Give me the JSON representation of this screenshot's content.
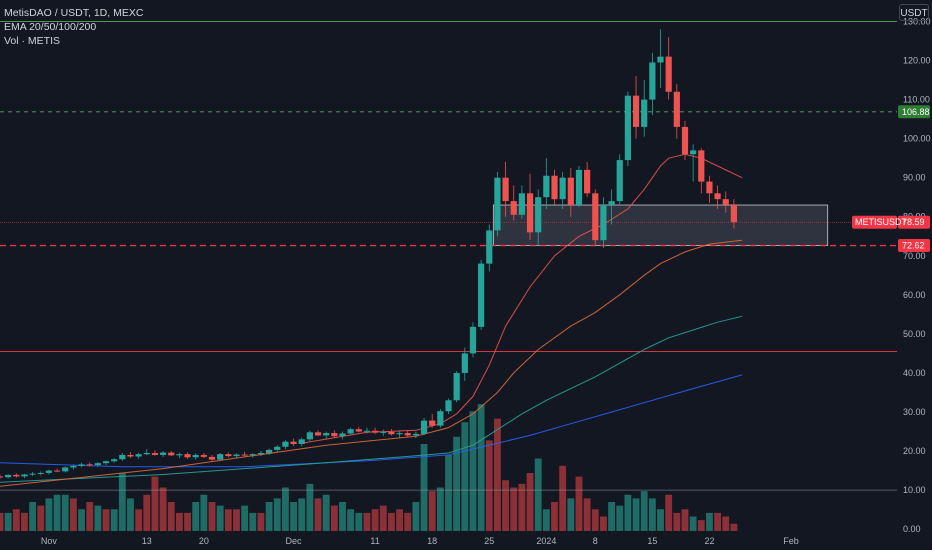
{
  "legend": {
    "title": "MetisDAO / USDT, 1D, MEXC",
    "ema": "EMA 20/50/100/200",
    "vol": "Vol · METIS"
  },
  "currency_label": "USDT",
  "colors": {
    "bg": "#131722",
    "up": "#26a69a",
    "down": "#ef5350",
    "vol_up": "#1f6b66",
    "vol_down": "#8a3036",
    "ema20": "#ef5350",
    "ema50": "#e06a3a",
    "ema100": "#26a69a",
    "ema200": "#2962ff",
    "green_level": "#4caf50",
    "red_level": "#f23645"
  },
  "chart_data": {
    "type": "candlestick",
    "symbol": "METISUSDT",
    "y_ticks": [
      0,
      10,
      20,
      30,
      40,
      50,
      60,
      70,
      80,
      90,
      100,
      110,
      120,
      130
    ],
    "y_tick_labels": [
      "0.00",
      "10.00",
      "20.00",
      "30.00",
      "40.00",
      "50.00",
      "60.00",
      "70.00",
      "80.00",
      "90.00",
      "100.00",
      "110.00",
      "120.00",
      "130.00"
    ],
    "ylim": [
      -1.5,
      135.5
    ],
    "x_ticks": [
      {
        "label": "Nov",
        "index": 6
      },
      {
        "label": "13",
        "index": 18
      },
      {
        "label": "20",
        "index": 25
      },
      {
        "label": "Dec",
        "index": 36
      },
      {
        "label": "11",
        "index": 46
      },
      {
        "label": "18",
        "index": 53
      },
      {
        "label": "25",
        "index": 60
      },
      {
        "label": "2024",
        "index": 67
      },
      {
        "label": "8",
        "index": 73
      },
      {
        "label": "15",
        "index": 80
      },
      {
        "label": "22",
        "index": 87
      },
      {
        "label": "Feb",
        "index": 97
      }
    ],
    "x_range": [
      0,
      110
    ],
    "candles": [
      [
        13.5,
        14.0,
        12.9,
        13.3
      ],
      [
        13.3,
        14.1,
        13.0,
        13.9
      ],
      [
        13.9,
        14.3,
        13.2,
        13.5
      ],
      [
        13.5,
        14.2,
        13.1,
        14.0
      ],
      [
        14.0,
        14.6,
        13.6,
        14.2
      ],
      [
        14.2,
        14.8,
        13.8,
        14.4
      ],
      [
        14.4,
        15.2,
        14.0,
        15.0
      ],
      [
        15.0,
        15.5,
        14.6,
        14.8
      ],
      [
        14.8,
        16.0,
        14.5,
        15.8
      ],
      [
        15.8,
        16.5,
        15.3,
        16.2
      ],
      [
        16.2,
        17.0,
        15.8,
        16.6
      ],
      [
        16.6,
        17.1,
        16.0,
        16.4
      ],
      [
        16.4,
        17.2,
        16.0,
        16.9
      ],
      [
        16.9,
        17.6,
        16.4,
        17.4
      ],
      [
        17.4,
        18.2,
        17.0,
        17.9
      ],
      [
        17.9,
        19.5,
        17.5,
        19.0
      ],
      [
        19.0,
        19.8,
        18.2,
        18.6
      ],
      [
        18.6,
        19.6,
        18.0,
        19.2
      ],
      [
        19.2,
        20.5,
        18.9,
        19.5
      ],
      [
        19.5,
        20.2,
        18.8,
        19.0
      ],
      [
        19.0,
        20.0,
        18.5,
        19.6
      ],
      [
        19.6,
        20.0,
        18.7,
        18.9
      ],
      [
        18.9,
        19.6,
        18.2,
        19.2
      ],
      [
        19.2,
        19.7,
        18.0,
        18.4
      ],
      [
        18.4,
        19.4,
        17.8,
        19.0
      ],
      [
        19.0,
        19.5,
        18.2,
        18.5
      ],
      [
        18.5,
        19.0,
        17.5,
        17.8
      ],
      [
        17.8,
        19.5,
        17.5,
        19.2
      ],
      [
        19.2,
        19.6,
        18.4,
        18.7
      ],
      [
        18.7,
        19.4,
        18.3,
        19.1
      ],
      [
        19.1,
        19.8,
        18.5,
        18.9
      ],
      [
        18.9,
        19.5,
        18.3,
        19.2
      ],
      [
        19.2,
        20.0,
        18.7,
        19.5
      ],
      [
        19.5,
        20.6,
        19.0,
        20.3
      ],
      [
        20.3,
        21.5,
        19.8,
        21.1
      ],
      [
        21.1,
        22.8,
        20.5,
        22.4
      ],
      [
        22.4,
        23.2,
        21.3,
        21.8
      ],
      [
        21.8,
        23.5,
        21.2,
        23.0
      ],
      [
        23.0,
        25.2,
        22.5,
        24.8
      ],
      [
        24.8,
        25.3,
        23.8,
        24.0
      ],
      [
        24.0,
        25.0,
        23.2,
        24.6
      ],
      [
        24.6,
        25.3,
        23.5,
        23.8
      ],
      [
        23.8,
        25.0,
        23.0,
        24.5
      ],
      [
        24.5,
        26.0,
        24.0,
        25.6
      ],
      [
        25.6,
        26.2,
        24.8,
        25.0
      ],
      [
        25.0,
        26.0,
        24.5,
        25.2
      ],
      [
        25.2,
        26.0,
        24.4,
        24.7
      ],
      [
        24.7,
        25.5,
        23.9,
        24.9
      ],
      [
        24.9,
        25.6,
        24.0,
        24.3
      ],
      [
        24.3,
        25.0,
        23.4,
        24.6
      ],
      [
        24.6,
        25.2,
        23.6,
        24.0
      ],
      [
        24.0,
        25.0,
        23.3,
        24.4
      ],
      [
        24.4,
        28.5,
        24.0,
        27.8
      ],
      [
        27.8,
        29.5,
        26.0,
        26.5
      ],
      [
        26.5,
        30.8,
        26.0,
        30.2
      ],
      [
        30.2,
        33.5,
        29.5,
        33.0
      ],
      [
        33.0,
        40.5,
        32.5,
        40.0
      ],
      [
        40.0,
        46.5,
        38.0,
        45.0
      ],
      [
        45.0,
        53.0,
        44.0,
        51.8
      ],
      [
        51.8,
        69.0,
        51.0,
        68.0
      ],
      [
        68.0,
        78.0,
        66.0,
        76.5
      ],
      [
        76.5,
        91.5,
        75.0,
        90.0
      ],
      [
        90.0,
        94.0,
        80.0,
        84.0
      ],
      [
        84.0,
        88.0,
        79.0,
        80.5
      ],
      [
        80.5,
        88.0,
        79.5,
        86.0
      ],
      [
        86.0,
        91.0,
        74.0,
        76.0
      ],
      [
        76.0,
        87.0,
        72.5,
        85.0
      ],
      [
        85.0,
        95.0,
        82.0,
        90.5
      ],
      [
        90.5,
        92.0,
        83.0,
        84.5
      ],
      [
        84.5,
        91.5,
        82.0,
        90.0
      ],
      [
        90.0,
        92.5,
        80.0,
        83.0
      ],
      [
        83.0,
        93.0,
        82.5,
        92.0
      ],
      [
        92.0,
        94.0,
        85.0,
        86.0
      ],
      [
        86.0,
        87.0,
        72.5,
        74.0
      ],
      [
        74.0,
        85.0,
        72.0,
        83.0
      ],
      [
        83.0,
        87.0,
        78.0,
        84.0
      ],
      [
        84.0,
        96.0,
        83.0,
        94.5
      ],
      [
        94.5,
        112.0,
        93.0,
        111.0
      ],
      [
        111.0,
        116.0,
        100.0,
        103.0
      ],
      [
        103.0,
        115.0,
        100.5,
        110.0
      ],
      [
        110.0,
        122.0,
        106.0,
        119.5
      ],
      [
        119.5,
        128.0,
        113.0,
        121.0
      ],
      [
        121.0,
        126.0,
        110.0,
        112.0
      ],
      [
        112.0,
        114.0,
        100.0,
        103.0
      ],
      [
        103.0,
        104.5,
        94.5,
        96.0
      ],
      [
        96.0,
        98.5,
        89.0,
        97.0
      ],
      [
        97.0,
        97.5,
        86.0,
        89.0
      ],
      [
        89.0,
        90.5,
        83.5,
        86.0
      ],
      [
        86.0,
        88.0,
        82.0,
        84.5
      ],
      [
        84.5,
        86.5,
        81.0,
        83.0
      ],
      [
        83.0,
        84.5,
        77.0,
        78.59
      ]
    ],
    "volumes": [
      [
        5,
        0
      ],
      [
        5,
        1
      ],
      [
        6,
        0
      ],
      [
        5,
        0
      ],
      [
        8,
        1
      ],
      [
        7,
        0
      ],
      [
        9,
        1
      ],
      [
        10,
        1
      ],
      [
        10,
        1
      ],
      [
        9,
        0
      ],
      [
        6,
        1
      ],
      [
        8,
        0
      ],
      [
        7,
        1
      ],
      [
        6,
        0
      ],
      [
        6,
        1
      ],
      [
        16,
        1
      ],
      [
        9,
        1
      ],
      [
        6,
        0
      ],
      [
        10,
        0
      ],
      [
        15,
        0
      ],
      [
        12,
        0
      ],
      [
        8,
        0
      ],
      [
        5,
        0
      ],
      [
        5,
        0
      ],
      [
        8,
        1
      ],
      [
        10,
        1
      ],
      [
        8,
        0
      ],
      [
        7,
        1
      ],
      [
        6,
        0
      ],
      [
        6,
        0
      ],
      [
        7,
        1
      ],
      [
        5,
        1
      ],
      [
        5,
        0
      ],
      [
        8,
        1
      ],
      [
        9,
        1
      ],
      [
        12,
        1
      ],
      [
        8,
        1
      ],
      [
        9,
        1
      ],
      [
        13,
        1
      ],
      [
        9,
        0
      ],
      [
        10,
        1
      ],
      [
        7,
        0
      ],
      [
        8,
        1
      ],
      [
        6,
        1
      ],
      [
        5,
        1
      ],
      [
        5,
        0
      ],
      [
        6,
        0
      ],
      [
        7,
        0
      ],
      [
        5,
        0
      ],
      [
        6,
        0
      ],
      [
        5,
        0
      ],
      [
        8,
        1
      ],
      [
        24,
        1
      ],
      [
        11,
        0
      ],
      [
        12,
        1
      ],
      [
        21,
        1
      ],
      [
        26,
        1
      ],
      [
        30,
        1
      ],
      [
        33,
        1
      ],
      [
        35,
        1
      ],
      [
        25,
        0
      ],
      [
        31,
        0
      ],
      [
        14,
        0
      ],
      [
        12,
        0
      ],
      [
        13,
        0
      ],
      [
        16,
        0
      ],
      [
        20,
        1
      ],
      [
        6,
        1
      ],
      [
        8,
        0
      ],
      [
        18,
        0
      ],
      [
        9,
        1
      ],
      [
        15,
        0
      ],
      [
        9,
        0
      ],
      [
        6,
        0
      ],
      [
        4,
        0
      ],
      [
        8,
        1
      ],
      [
        7,
        1
      ],
      [
        10,
        1
      ],
      [
        9,
        1
      ],
      [
        11,
        1
      ],
      [
        9,
        1
      ],
      [
        6,
        1
      ],
      [
        10,
        0
      ],
      [
        5,
        0
      ],
      [
        6,
        0
      ],
      [
        4,
        1
      ],
      [
        3,
        0
      ],
      [
        5,
        1
      ],
      [
        5,
        0
      ],
      [
        4,
        0
      ],
      [
        2,
        0
      ]
    ],
    "ema20": [
      [
        37,
        22.0
      ],
      [
        45,
        24.8
      ],
      [
        51,
        25.3
      ],
      [
        54,
        27.0
      ],
      [
        56,
        29.5
      ],
      [
        58,
        34.0
      ],
      [
        60,
        42.0
      ],
      [
        62,
        52.0
      ],
      [
        65,
        62.0
      ],
      [
        68,
        70.0
      ],
      [
        71,
        75.0
      ],
      [
        74,
        78.0
      ],
      [
        77,
        82.0
      ],
      [
        79,
        87.0
      ],
      [
        81,
        93.0
      ],
      [
        82,
        95.0
      ],
      [
        84,
        96.0
      ],
      [
        86,
        95.0
      ],
      [
        88,
        93.0
      ],
      [
        91,
        90.0
      ]
    ],
    "ema50": [
      [
        0,
        11.0
      ],
      [
        20,
        15.5
      ],
      [
        40,
        21.5
      ],
      [
        51,
        23.8
      ],
      [
        55,
        26.0
      ],
      [
        58,
        29.5
      ],
      [
        61,
        35.0
      ],
      [
        63,
        40.0
      ],
      [
        66,
        46.0
      ],
      [
        70,
        52.0
      ],
      [
        73,
        55.5
      ],
      [
        76,
        60.0
      ],
      [
        79,
        65.0
      ],
      [
        81,
        68.0
      ],
      [
        84,
        71.0
      ],
      [
        87,
        73.0
      ],
      [
        91,
        74.0
      ]
    ],
    "ema100": [
      [
        0,
        12.0
      ],
      [
        20,
        14.0
      ],
      [
        40,
        17.0
      ],
      [
        51,
        18.8
      ],
      [
        55,
        19.5
      ],
      [
        58,
        21.5
      ],
      [
        61,
        25.5
      ],
      [
        64,
        29.5
      ],
      [
        67,
        33.0
      ],
      [
        70,
        36.0
      ],
      [
        73,
        39.0
      ],
      [
        76,
        42.5
      ],
      [
        79,
        46.0
      ],
      [
        82,
        49.0
      ],
      [
        85,
        51.0
      ],
      [
        88,
        53.0
      ],
      [
        91,
        54.5
      ]
    ],
    "ema200": [
      [
        0,
        17.0
      ],
      [
        15,
        16.0
      ],
      [
        30,
        16.0
      ],
      [
        45,
        17.5
      ],
      [
        55,
        19.0
      ],
      [
        60,
        21.5
      ],
      [
        65,
        24.0
      ],
      [
        70,
        27.0
      ],
      [
        75,
        30.0
      ],
      [
        80,
        33.0
      ],
      [
        85,
        36.0
      ],
      [
        91,
        39.5
      ]
    ],
    "horizontal_lines": [
      {
        "value": 130,
        "style": "solid",
        "color": "green"
      },
      {
        "value": 106.88,
        "style": "dashed",
        "color": "green"
      },
      {
        "value": 78.59,
        "style": "thin",
        "color": "red"
      },
      {
        "value": 72.62,
        "style": "dashed",
        "color": "red"
      },
      {
        "value": 45.5,
        "style": "solid",
        "color": "red"
      },
      {
        "value": 10,
        "style": "solid",
        "color": "gray"
      }
    ],
    "zone": {
      "from_index": 61,
      "to_index": 102,
      "low": 72.62,
      "high": 83.0
    },
    "price_tags": [
      {
        "label": "106.88",
        "value": 106.88,
        "color": "#2e7d32"
      },
      {
        "label": "78.59",
        "value": 78.59,
        "color": "#f23645"
      },
      {
        "label": "72.62",
        "value": 72.62,
        "color": "#f23645"
      }
    ],
    "symbol_tag_value": 78.59
  }
}
